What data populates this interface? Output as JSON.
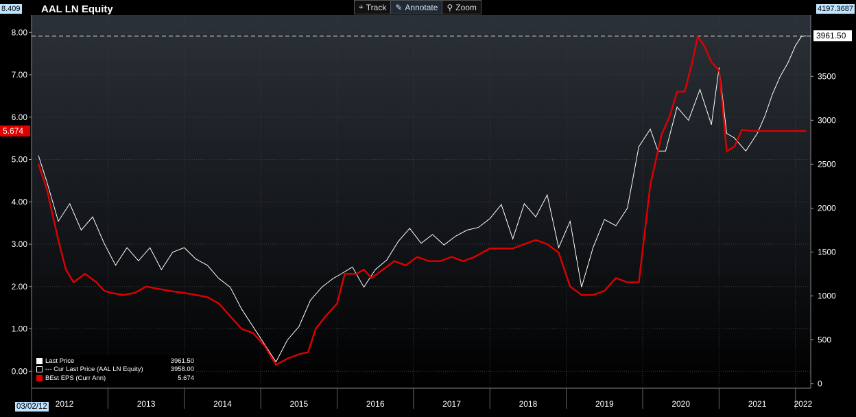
{
  "header": {
    "title": "AAL LN Equity",
    "left_top_value": "8.409",
    "right_top_value": "4197.3687",
    "start_date": "03/02/12"
  },
  "toolbar": {
    "track_label": "Track",
    "annotate_label": "Annotate",
    "zoom_label": "Zoom"
  },
  "legend": {
    "items": [
      {
        "label": "Last Price",
        "value": "3961.50"
      },
      {
        "label": "--- Cur Last Price (AAL LN Equity)",
        "value": "3958.00"
      },
      {
        "label": "BEst EPS (Curr Ann)",
        "value": "5.674"
      }
    ]
  },
  "colors": {
    "price_line": "#ffffff",
    "eps_line": "#e00000",
    "grid": "#3a3a3a",
    "badge": "#bfe4ff",
    "background_top": "#2b3138",
    "background_bottom": "#000000"
  },
  "chart_data": {
    "type": "line",
    "title": "AAL LN Equity",
    "x_ticks": [
      "2012",
      "2013",
      "2014",
      "2015",
      "2016",
      "2017",
      "2018",
      "2019",
      "2020",
      "2021",
      "2022"
    ],
    "left_axis": {
      "ticks": [
        "0.00",
        "1.00",
        "2.00",
        "3.00",
        "4.00",
        "5.00",
        "6.00",
        "7.00",
        "8.00"
      ],
      "ylim": [
        -0.4,
        8.409
      ]
    },
    "right_axis": {
      "ticks": [
        "0",
        "500",
        "1000",
        "1500",
        "2000",
        "2500",
        "3000",
        "3500"
      ],
      "ylim": [
        -50,
        4197.3687
      ]
    },
    "current_eps_label": "5.674",
    "current_price_label": "3961.50",
    "current_price_line_value": 3958.0,
    "series": [
      {
        "name": "Last Price",
        "axis": "right",
        "x": [
          2012.09,
          2012.2,
          2012.35,
          2012.5,
          2012.65,
          2012.8,
          2012.95,
          2013.1,
          2013.25,
          2013.4,
          2013.55,
          2013.7,
          2013.85,
          2014.0,
          2014.15,
          2014.3,
          2014.45,
          2014.6,
          2014.75,
          2014.9,
          2015.05,
          2015.2,
          2015.35,
          2015.5,
          2015.65,
          2015.8,
          2015.95,
          2016.05,
          2016.2,
          2016.35,
          2016.5,
          2016.65,
          2016.8,
          2016.95,
          2017.1,
          2017.25,
          2017.4,
          2017.55,
          2017.7,
          2017.85,
          2018.0,
          2018.15,
          2018.3,
          2018.45,
          2018.6,
          2018.75,
          2018.9,
          2019.05,
          2019.2,
          2019.35,
          2019.5,
          2019.65,
          2019.8,
          2019.95,
          2020.1,
          2020.2,
          2020.3,
          2020.45,
          2020.6,
          2020.75,
          2020.9,
          2021.0,
          2021.1,
          2021.2,
          2021.35,
          2021.5,
          2021.6,
          2021.7,
          2021.8,
          2021.9,
          2022.0,
          2022.08,
          2022.14
        ],
        "values": [
          2600,
          2300,
          1850,
          2050,
          1750,
          1900,
          1600,
          1350,
          1550,
          1400,
          1550,
          1300,
          1500,
          1550,
          1420,
          1350,
          1200,
          1100,
          850,
          650,
          450,
          250,
          500,
          650,
          950,
          1100,
          1200,
          1250,
          1330,
          1100,
          1300,
          1410,
          1620,
          1770,
          1600,
          1700,
          1580,
          1680,
          1750,
          1780,
          1880,
          2040,
          1650,
          2050,
          1900,
          2150,
          1550,
          1850,
          1100,
          1550,
          1870,
          1800,
          2000,
          2700,
          2900,
          2650,
          2650,
          3150,
          3000,
          3350,
          2950,
          3600,
          2850,
          2800,
          2650,
          2850,
          3050,
          3300,
          3500,
          3650,
          3850,
          3955,
          3961.5
        ]
      },
      {
        "name": "BEst EPS (Curr Ann)",
        "axis": "left",
        "x": [
          2012.09,
          2012.2,
          2012.35,
          2012.45,
          2012.55,
          2012.7,
          2012.85,
          2012.95,
          2013.05,
          2013.2,
          2013.35,
          2013.5,
          2013.65,
          2013.8,
          2014.0,
          2014.15,
          2014.3,
          2014.45,
          2014.6,
          2014.75,
          2014.9,
          2015.05,
          2015.2,
          2015.35,
          2015.5,
          2015.62,
          2015.72,
          2015.85,
          2016.0,
          2016.1,
          2016.25,
          2016.35,
          2016.45,
          2016.6,
          2016.75,
          2016.9,
          2017.05,
          2017.2,
          2017.35,
          2017.5,
          2017.65,
          2017.8,
          2018.0,
          2018.15,
          2018.3,
          2018.45,
          2018.6,
          2018.75,
          2018.9,
          2019.05,
          2019.2,
          2019.35,
          2019.5,
          2019.65,
          2019.8,
          2019.95,
          2020.1,
          2020.25,
          2020.35,
          2020.45,
          2020.55,
          2020.65,
          2020.72,
          2020.8,
          2020.9,
          2021.0,
          2021.1,
          2021.2,
          2021.3,
          2021.42,
          2021.5,
          2021.6,
          2021.72,
          2021.82,
          2021.9,
          2021.95,
          2022.05,
          2022.14
        ],
        "values": [
          4.9,
          4.3,
          3.1,
          2.4,
          2.1,
          2.3,
          2.1,
          1.9,
          1.85,
          1.8,
          1.85,
          2.0,
          1.95,
          1.9,
          1.85,
          1.8,
          1.75,
          1.6,
          1.3,
          1.0,
          0.9,
          0.6,
          0.15,
          0.3,
          0.4,
          0.45,
          1.0,
          1.3,
          1.6,
          2.3,
          2.3,
          2.4,
          2.2,
          2.4,
          2.6,
          2.5,
          2.7,
          2.6,
          2.6,
          2.7,
          2.6,
          2.7,
          2.9,
          2.9,
          2.9,
          3.0,
          3.1,
          3.0,
          2.8,
          2.0,
          1.8,
          1.8,
          1.9,
          2.2,
          2.1,
          2.1,
          4.4,
          5.6,
          6.0,
          6.6,
          6.6,
          7.3,
          7.9,
          7.7,
          7.3,
          7.1,
          5.2,
          5.3,
          5.7,
          5.674,
          5.674,
          5.674,
          5.674,
          5.674,
          5.674,
          5.674,
          5.674,
          5.674
        ]
      }
    ]
  }
}
